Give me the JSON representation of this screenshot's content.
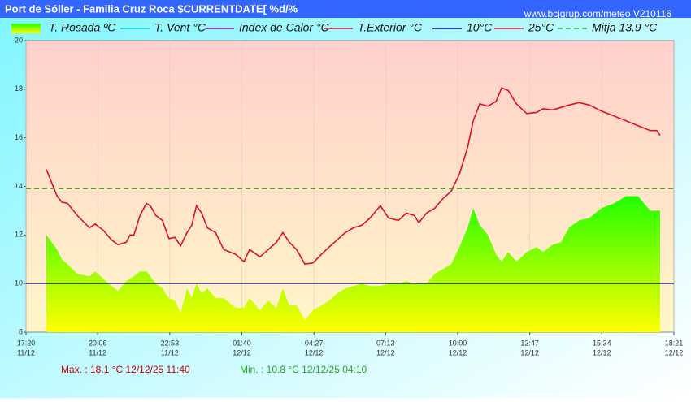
{
  "chart_data": {
    "type": "line",
    "title": "Port de Sóller - Familia Cruz Roca $CURRENTDATE[ %d/%",
    "subtitle": "www.bcjgrup.com/meteo V210116",
    "x": [
      47,
      72,
      83,
      96,
      119,
      147,
      160,
      179,
      198,
      213,
      232,
      241,
      250,
      264,
      279,
      288,
      301,
      316,
      331,
      345,
      358,
      373,
      384,
      395,
      407,
      420,
      439,
      458,
      486,
      505,
      518,
      542,
      561,
      580,
      595,
      610,
      627,
      646,
      665,
      684,
      702,
      721,
      740,
      759,
      778,
      797,
      821,
      840,
      863,
      881,
      900,
      910,
      928,
      947,
      966,
      985,
      1004,
      1023,
      1036,
      1051,
      1070,
      1089,
      1102,
      1117,
      1136,
      1160,
      1183,
      1198,
      1220,
      1239,
      1258,
      1281,
      1305,
      1333,
      1362,
      1390,
      1418,
      1446,
      1461,
      1469
    ],
    "series": [
      {
        "name": "T. Rosada ºC",
        "color": "#33ff00",
        "fill": true,
        "values": [
          12.0,
          11.4,
          11.0,
          10.8,
          10.4,
          10.3,
          10.5,
          10.2,
          9.9,
          9.7,
          10.1,
          10.2,
          10.3,
          10.5,
          10.5,
          10.3,
          10.0,
          9.8,
          9.4,
          9.3,
          8.8,
          9.8,
          9.4,
          10.0,
          9.6,
          9.8,
          9.4,
          9.4,
          9.0,
          9.0,
          9.4,
          8.9,
          9.3,
          9.0,
          9.8,
          9.1,
          9.1,
          8.5,
          8.9,
          9.1,
          9.3,
          9.6,
          9.8,
          9.9,
          10.0,
          9.9,
          9.9,
          10.0,
          10.0,
          10.1,
          10.0,
          10.0,
          10.0,
          10.4,
          10.6,
          10.8,
          11.5,
          12.3,
          13.1,
          12.4,
          12.0,
          11.2,
          10.9,
          11.3,
          10.9,
          11.3,
          11.5,
          11.3,
          11.6,
          11.7,
          12.3,
          12.6,
          12.7,
          13.1,
          13.3,
          13.6,
          13.6,
          13.0,
          13.0,
          13.0
        ]
      },
      {
        "name": "T.Exterior °C",
        "color": "#dd1122",
        "fill": false,
        "values": [
          14.7,
          13.6,
          13.35,
          13.3,
          12.8,
          12.3,
          12.45,
          12.2,
          11.8,
          11.6,
          11.7,
          12.0,
          12.0,
          12.8,
          13.3,
          13.2,
          12.8,
          12.6,
          11.85,
          11.9,
          11.55,
          12.1,
          12.4,
          13.2,
          12.9,
          12.3,
          12.1,
          11.4,
          11.2,
          10.9,
          11.4,
          11.1,
          11.4,
          11.7,
          12.1,
          11.7,
          11.4,
          10.8,
          10.85,
          11.2,
          11.5,
          11.8,
          12.1,
          12.3,
          12.4,
          12.7,
          13.2,
          12.7,
          12.6,
          12.9,
          12.8,
          12.5,
          12.9,
          13.1,
          13.5,
          13.8,
          14.5,
          15.6,
          16.7,
          17.4,
          17.3,
          17.5,
          18.05,
          17.95,
          17.4,
          17.0,
          17.05,
          17.2,
          17.15,
          17.25,
          17.35,
          17.45,
          17.35,
          17.1,
          16.9,
          16.7,
          16.5,
          16.3,
          16.3,
          16.1
        ]
      }
    ],
    "legend_only": [
      {
        "name": "T. Vent °C",
        "color": "#00cccc"
      },
      {
        "name": "Index de Calor °C",
        "color": "#990099"
      }
    ],
    "hlines": [
      {
        "name": "10°C",
        "value": 10,
        "color": "#000099",
        "dashed": false
      },
      {
        "name": "25°C",
        "value": 25,
        "color": "#dd1122",
        "dashed": false
      },
      {
        "name": "Mitja 13.9 °C",
        "value": 13.9,
        "color": "#22bb22",
        "dashed": true
      }
    ],
    "xlim": [
      0,
      1501
    ],
    "xticks": [
      {
        "value": 0,
        "label": "17:20"
      },
      {
        "value": 166,
        "label": "20:06"
      },
      {
        "value": 333,
        "label": "22:53"
      },
      {
        "value": 500,
        "label": "01:40"
      },
      {
        "value": 667,
        "label": "04:27"
      },
      {
        "value": 833,
        "label": "07:13"
      },
      {
        "value": 1000,
        "label": "10:00"
      },
      {
        "value": 1167,
        "label": "12:47"
      },
      {
        "value": 1334,
        "label": "15:34"
      },
      {
        "value": 1501,
        "label": "18:21"
      }
    ],
    "xtick_dates": [
      "11/12",
      "11/12",
      "11/12",
      "12/12",
      "12/12",
      "12/12",
      "12/12",
      "12/12",
      "12/12",
      "12/12"
    ],
    "ylim": [
      8,
      20
    ],
    "yticks": [
      8,
      10,
      12,
      14,
      16,
      18,
      20
    ],
    "grid": true,
    "max_text": "Max. :  18.1 °C 12/12/25 11:40",
    "min_text": "Min. : 10.8 °C 12/12/25 04:10"
  }
}
